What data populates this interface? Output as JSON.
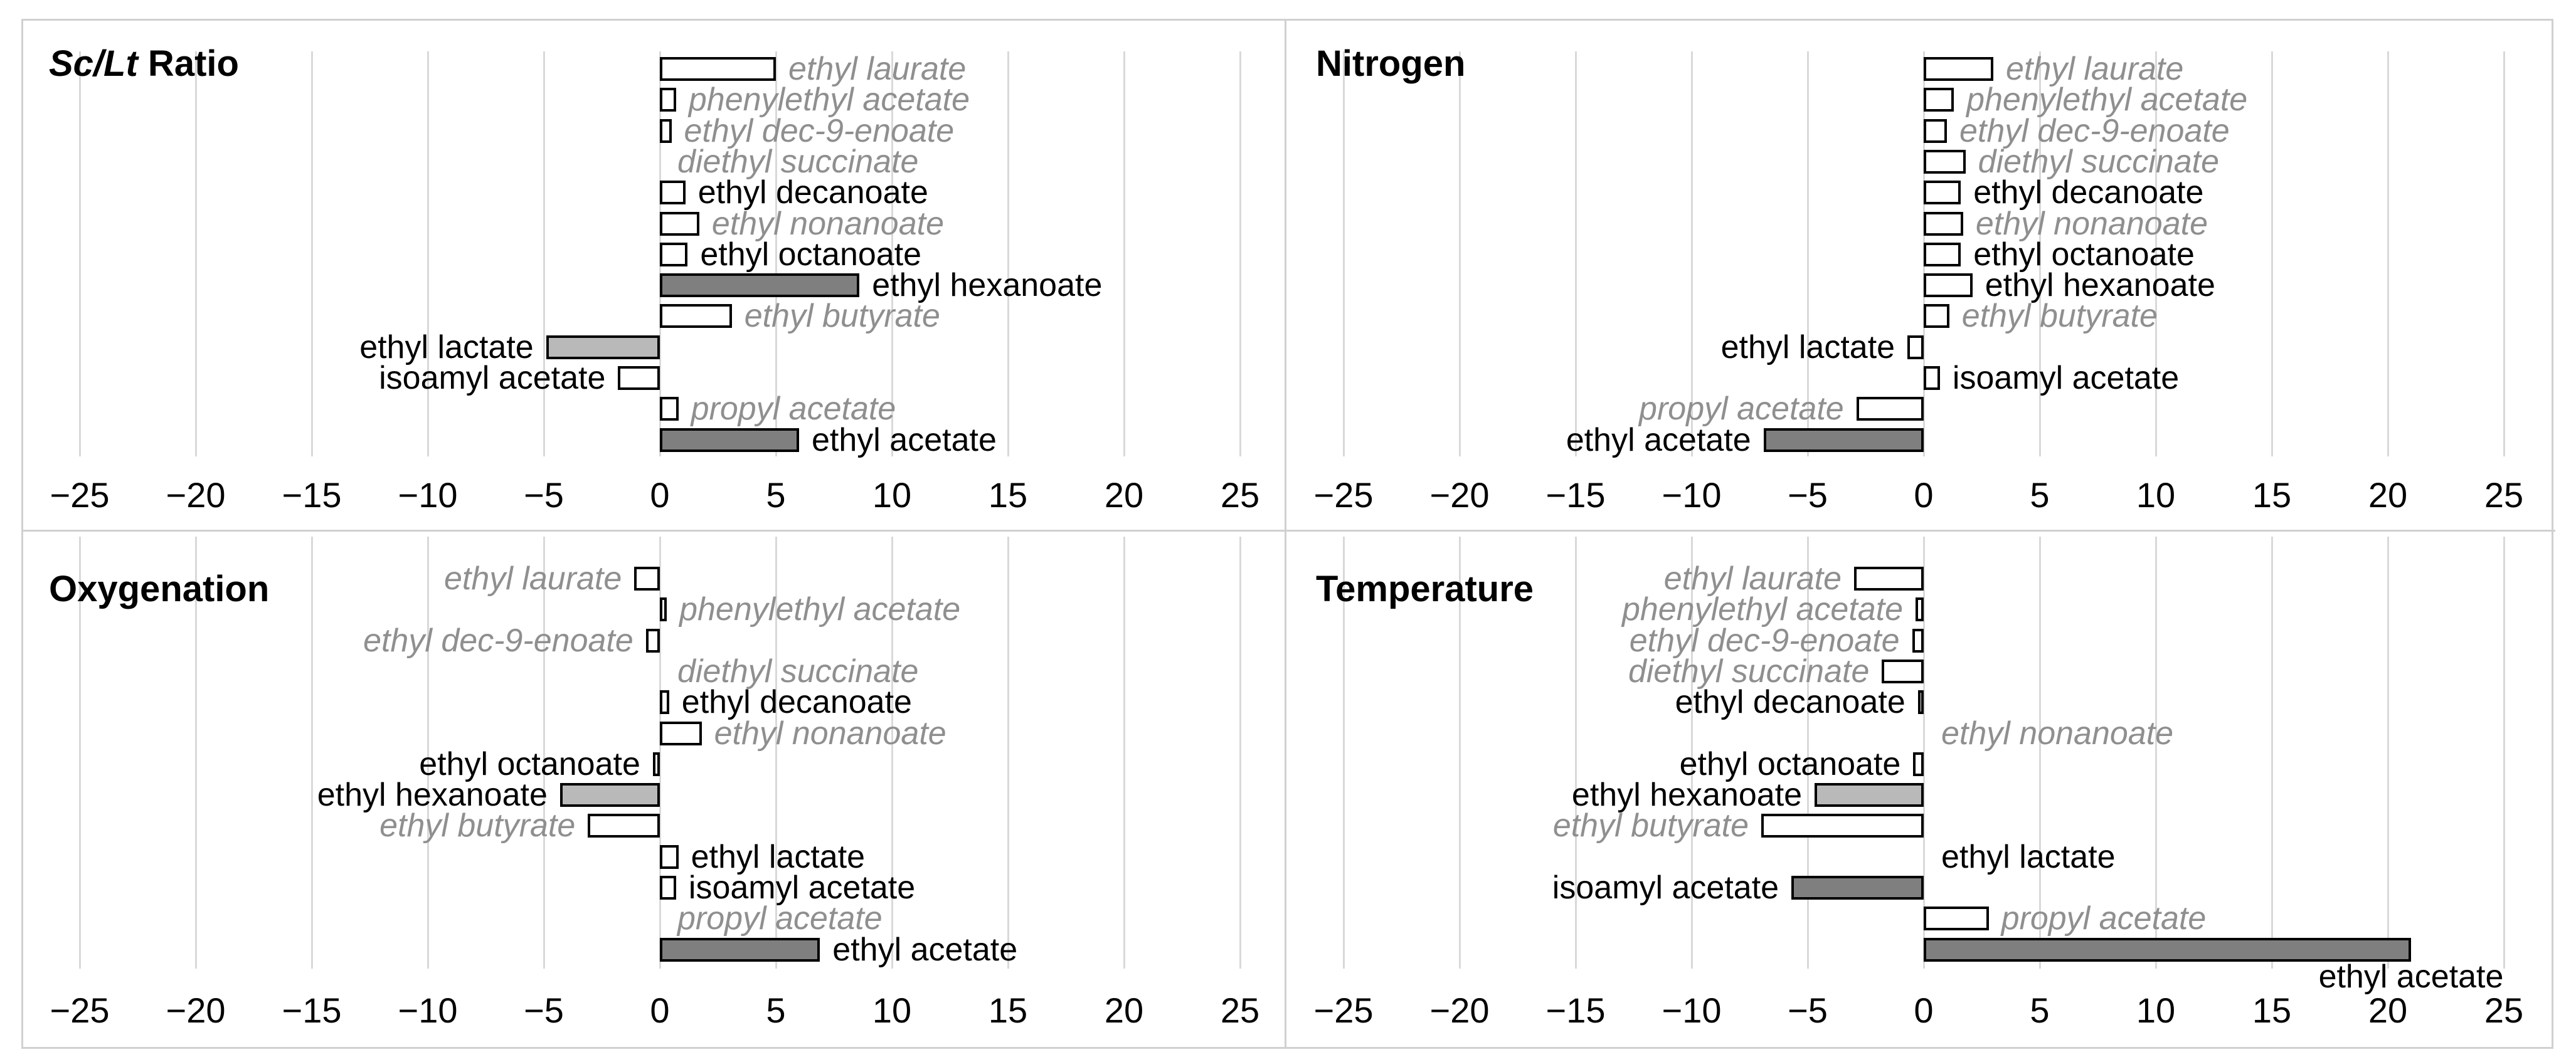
{
  "figure": {
    "background": "#ffffff",
    "frame_color": "#d0d0d0",
    "gridline_color": "#d9d9d9",
    "bar_border_color": "#000000",
    "fill_colors": {
      "white": "#ffffff",
      "light-gray": "#b9b9b9",
      "dark-gray": "#7f7f7f",
      "none": "transparent"
    },
    "label_colors": {
      "gray": "#8f8f8f",
      "black": "#000000"
    },
    "x_ticks": [
      -25,
      -20,
      -15,
      -10,
      -5,
      0,
      5,
      10,
      15,
      20,
      25
    ],
    "x_tick_labels": [
      "−25",
      "−20",
      "−15",
      "−10",
      "−5",
      "0",
      "5",
      "10",
      "15",
      "20",
      "25"
    ]
  },
  "chart_data": [
    {
      "type": "bar",
      "orientation": "horizontal",
      "title": "Sc/Lt Ratio",
      "title_italic": "Sc/Lt",
      "title_plain": " Ratio",
      "xlabel": "",
      "xlim": [
        -25,
        25
      ],
      "grid": true,
      "categories": [
        "ethyl laurate",
        "phenylethyl acetate",
        "ethyl dec-9-enoate",
        "diethyl succinate",
        "ethyl decanoate",
        "ethyl nonanoate",
        "ethyl octanoate",
        "ethyl hexanoate",
        "ethyl butyrate",
        "ethyl lactate",
        "isoamyl acetate",
        "propyl acetate",
        "ethyl acetate"
      ],
      "values": [
        5.0,
        0.7,
        0.5,
        0,
        1.1,
        1.7,
        1.2,
        8.6,
        3.1,
        -4.9,
        -1.8,
        0.8,
        6.0
      ],
      "fills": [
        "white",
        "white",
        "white",
        "none",
        "white",
        "white",
        "white",
        "dark-gray",
        "white",
        "light-gray",
        "white",
        "white",
        "dark-gray"
      ],
      "label_styles": [
        "gray",
        "gray",
        "gray",
        "gray",
        "black",
        "gray",
        "black",
        "black",
        "gray",
        "black",
        "black",
        "gray",
        "black"
      ],
      "label_below": ""
    },
    {
      "type": "bar",
      "orientation": "horizontal",
      "title": "Nitrogen",
      "title_italic": "",
      "title_plain": "Nitrogen",
      "xlabel": "",
      "xlim": [
        -25,
        25
      ],
      "grid": true,
      "categories": [
        "ethyl laurate",
        "phenylethyl acetate",
        "ethyl dec-9-enoate",
        "diethyl succinate",
        "ethyl decanoate",
        "ethyl nonanoate",
        "ethyl octanoate",
        "ethyl hexanoate",
        "ethyl butyrate",
        "ethyl lactate",
        "isoamyl acetate",
        "propyl acetate",
        "ethyl acetate"
      ],
      "values": [
        3.0,
        1.3,
        1.0,
        1.8,
        1.6,
        1.7,
        1.6,
        2.1,
        1.1,
        -0.7,
        0.7,
        -2.9,
        -6.9
      ],
      "fills": [
        "white",
        "white",
        "white",
        "white",
        "white",
        "white",
        "white",
        "white",
        "white",
        "white",
        "white",
        "white",
        "dark-gray"
      ],
      "label_styles": [
        "gray",
        "gray",
        "gray",
        "gray",
        "black",
        "gray",
        "black",
        "black",
        "gray",
        "black",
        "black",
        "gray",
        "black"
      ],
      "label_below": ""
    },
    {
      "type": "bar",
      "orientation": "horizontal",
      "title": "Oxygenation",
      "title_italic": "",
      "title_plain": "Oxygenation",
      "xlabel": "",
      "xlim": [
        -25,
        25
      ],
      "grid": true,
      "categories": [
        "ethyl laurate",
        "phenylethyl acetate",
        "ethyl dec-9-enoate",
        "diethyl succinate",
        "ethyl decanoate",
        "ethyl nonanoate",
        "ethyl octanoate",
        "ethyl hexanoate",
        "ethyl butyrate",
        "ethyl lactate",
        "isoamyl acetate",
        "propyl acetate",
        "ethyl acetate"
      ],
      "values": [
        -1.1,
        0.3,
        -0.6,
        0,
        0.4,
        1.8,
        -0.3,
        -4.3,
        -3.1,
        0.8,
        0.7,
        0,
        6.9
      ],
      "fills": [
        "white",
        "white",
        "white",
        "none",
        "white",
        "white",
        "white",
        "light-gray",
        "white",
        "white",
        "white",
        "none",
        "dark-gray"
      ],
      "label_styles": [
        "gray",
        "gray",
        "gray",
        "gray",
        "black",
        "gray",
        "black",
        "black",
        "gray",
        "black",
        "black",
        "gray",
        "black"
      ],
      "label_below": ""
    },
    {
      "type": "bar",
      "orientation": "horizontal",
      "title": "Temperature",
      "title_italic": "",
      "title_plain": "Temperature",
      "xlabel": "",
      "xlim": [
        -25,
        25
      ],
      "grid": true,
      "categories": [
        "ethyl laurate",
        "phenylethyl acetate",
        "ethyl dec-9-enoate",
        "diethyl succinate",
        "ethyl decanoate",
        "ethyl nonanoate",
        "ethyl octanoate",
        "ethyl hexanoate",
        "ethyl butyrate",
        "ethyl lactate",
        "isoamyl acetate",
        "propyl acetate",
        "ethyl acetate"
      ],
      "values": [
        -3.0,
        -0.35,
        -0.5,
        -1.8,
        -0.25,
        0,
        -0.45,
        -4.7,
        -7.0,
        0,
        -5.7,
        2.8,
        21.0
      ],
      "fills": [
        "white",
        "white",
        "white",
        "white",
        "white",
        "none",
        "white",
        "light-gray",
        "white",
        "none",
        "dark-gray",
        "white",
        "dark-gray"
      ],
      "label_styles": [
        "gray",
        "gray",
        "gray",
        "gray",
        "black",
        "gray",
        "black",
        "black",
        "gray",
        "black",
        "black",
        "gray",
        "black"
      ],
      "label_below": "ethyl acetate"
    }
  ]
}
